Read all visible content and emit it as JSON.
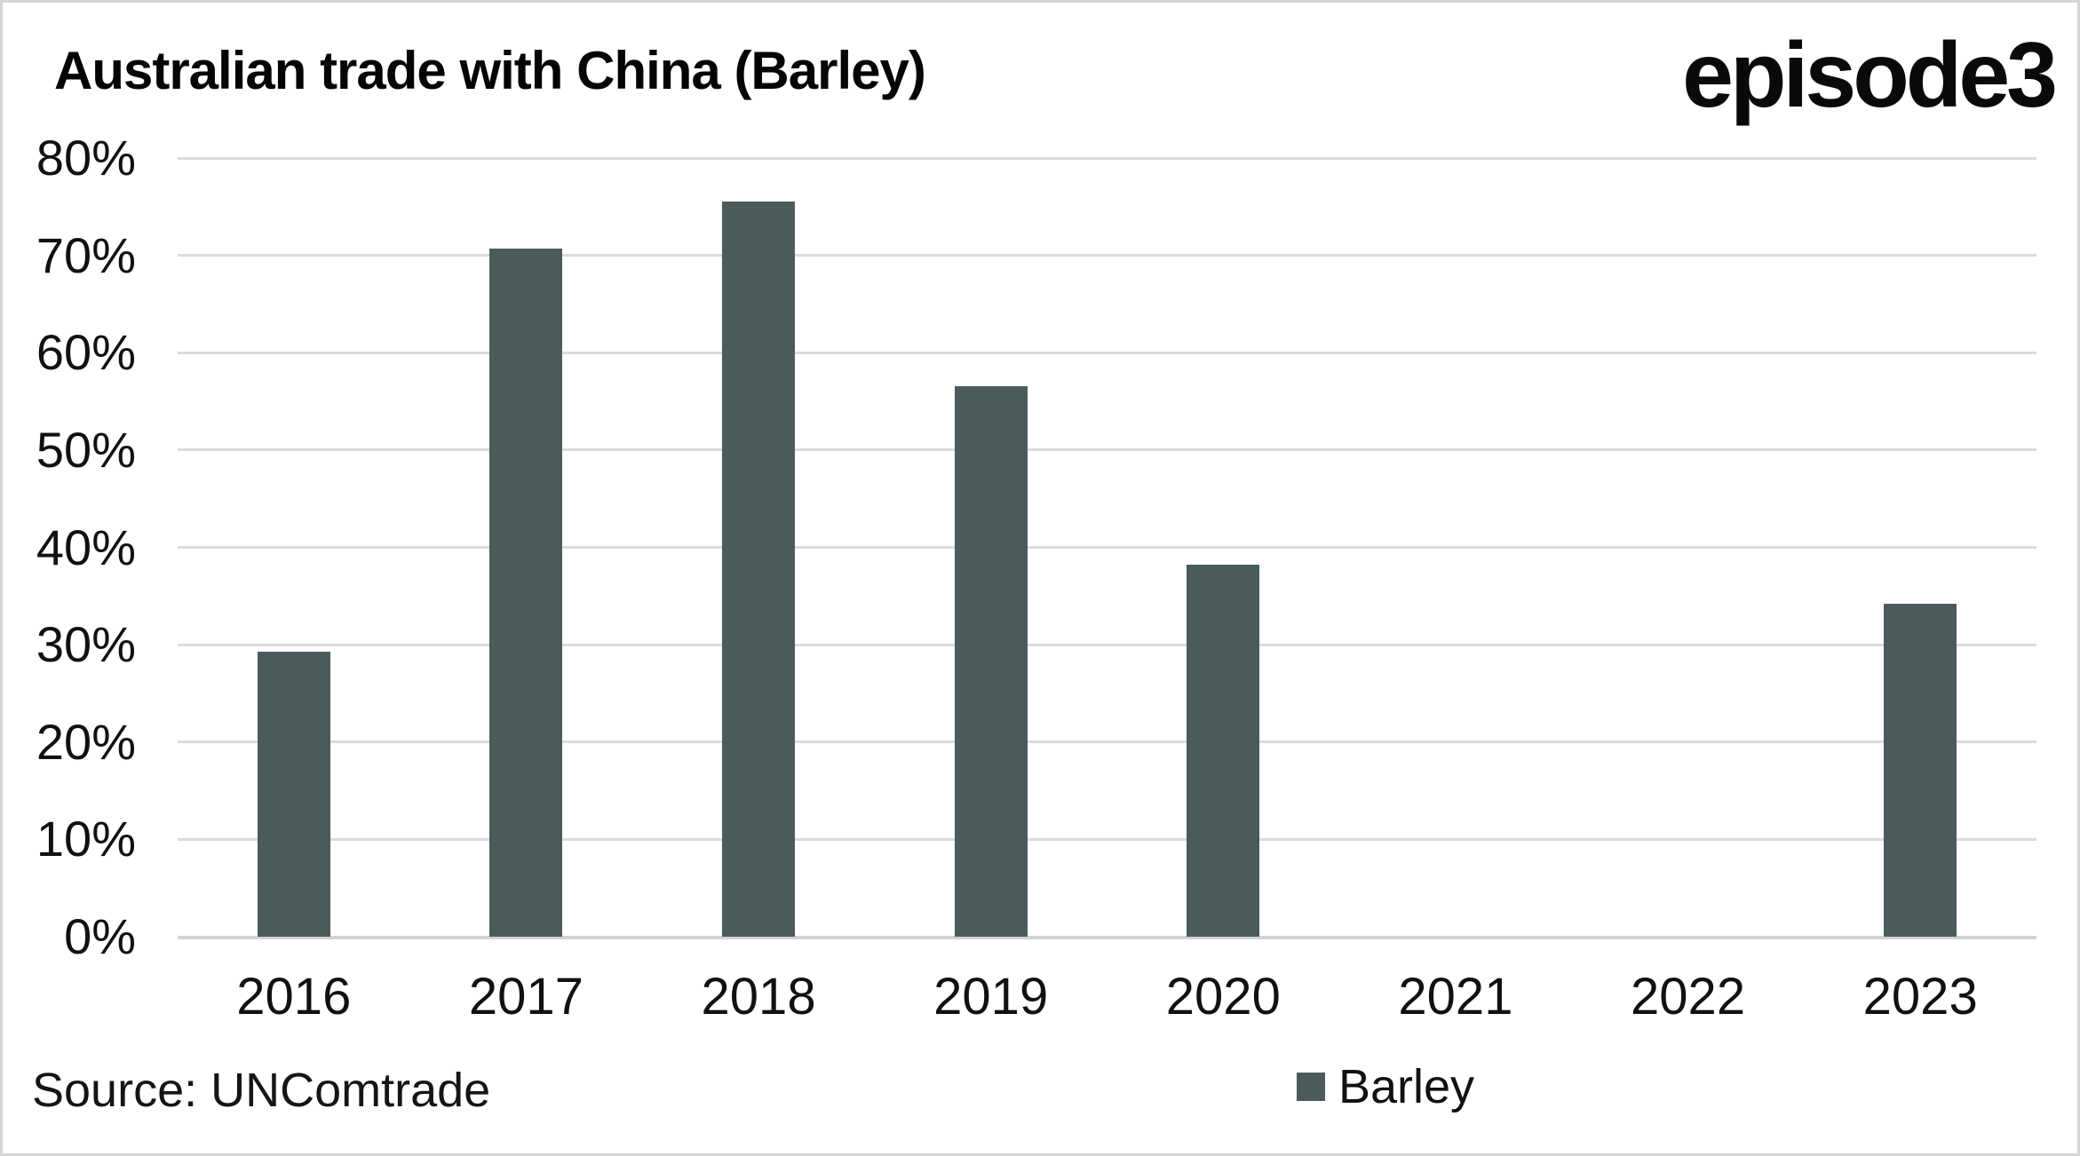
{
  "header": {
    "title": "Australian trade with China (Barley)",
    "logo_text": "episode3"
  },
  "footer": {
    "source": "Source: UNComtrade"
  },
  "colors": {
    "bar": "#4b5b5c",
    "gridline": "#dbdbdb",
    "baseline": "#d2d2d2",
    "background": "#ffffff",
    "border": "#d5d5d5",
    "text": "#111111"
  },
  "chart_data": {
    "type": "bar",
    "title": "Australian trade with China (Barley)",
    "categories": [
      "2016",
      "2017",
      "2018",
      "2019",
      "2020",
      "2021",
      "2022",
      "2023"
    ],
    "series": [
      {
        "name": "Barley",
        "values": [
          29.3,
          70.7,
          75.5,
          56.6,
          38.2,
          0,
          0,
          34.2
        ]
      }
    ],
    "unit": "%",
    "xlabel": "",
    "ylabel": "",
    "ylim": [
      0,
      80
    ],
    "ytick_step": 10,
    "ytick_labels": [
      "0%",
      "10%",
      "20%",
      "30%",
      "40%",
      "50%",
      "60%",
      "70%",
      "80%"
    ],
    "grid": true,
    "legend_position": "bottom"
  }
}
